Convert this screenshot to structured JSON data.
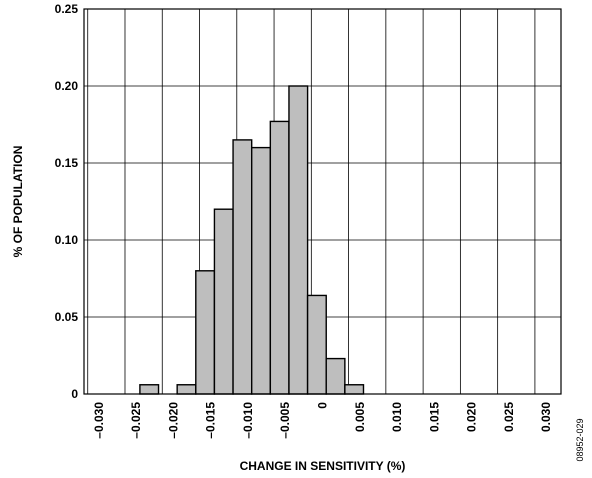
{
  "chart_data": {
    "type": "bar",
    "title": "",
    "xlabel": "CHANGE IN SENSITIVITY (%)",
    "ylabel": "% OF POPULATION",
    "xlim": [
      -0.032,
      0.032
    ],
    "ylim": [
      0,
      0.25
    ],
    "x_ticks": [
      -0.03,
      -0.025,
      -0.02,
      -0.015,
      -0.01,
      -0.005,
      0,
      0.005,
      0.01,
      0.015,
      0.02,
      0.025,
      0.03
    ],
    "x_tick_labels": [
      "–0.030",
      "–0.025",
      "–0.020",
      "–0.015",
      "–0.010",
      "–0.005",
      "0",
      "0.005",
      "0.010",
      "0.015",
      "0.020",
      "0.025",
      "0.030"
    ],
    "y_ticks": [
      0,
      0.05,
      0.1,
      0.15,
      0.2,
      0.25
    ],
    "y_tick_labels": [
      "0",
      "0.05",
      "0.10",
      "0.15",
      "0.20",
      "0.25"
    ],
    "bin_width": 0.0025,
    "bins": [
      {
        "x_start": -0.0245,
        "value": 0.006
      },
      {
        "x_start": -0.0195,
        "value": 0.006
      },
      {
        "x_start": -0.017,
        "value": 0.08
      },
      {
        "x_start": -0.0145,
        "value": 0.12
      },
      {
        "x_start": -0.012,
        "value": 0.165
      },
      {
        "x_start": -0.0095,
        "value": 0.16
      },
      {
        "x_start": -0.007,
        "value": 0.177
      },
      {
        "x_start": -0.0045,
        "value": 0.2
      },
      {
        "x_start": -0.002,
        "value": 0.064
      },
      {
        "x_start": 0.0005,
        "value": 0.023
      },
      {
        "x_start": 0.003,
        "value": 0.006
      }
    ],
    "bar_color": "#bebebe",
    "grid": true
  },
  "figure_id": "08952-029"
}
